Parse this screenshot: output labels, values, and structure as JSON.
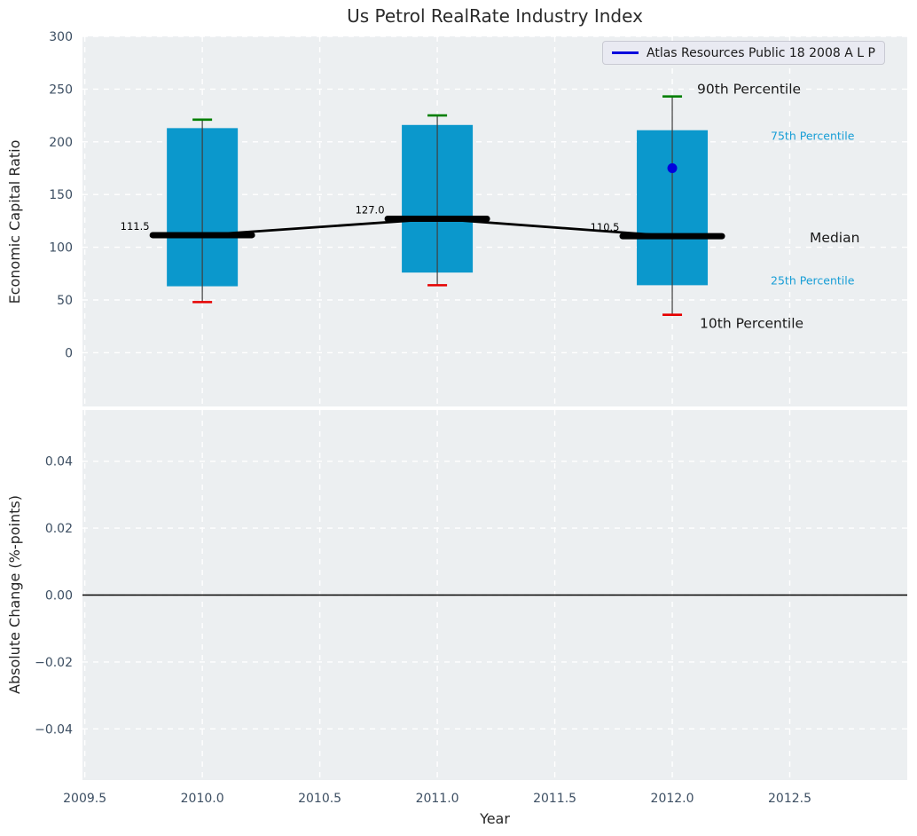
{
  "figure": {
    "title": "Us Petrol RealRate Industry Index",
    "background": "#ffffff",
    "axes_background": "#eceff1",
    "grid_color": "#ffffff"
  },
  "chart_data": [
    {
      "type": "boxplot",
      "title": "Us Petrol RealRate Industry Index",
      "ylabel": "Economic Capital Ratio",
      "legend": {
        "position": "upper right",
        "entries": [
          {
            "label": "Atlas Resources Public 18 2008 A L P",
            "color": "#0202dd"
          }
        ]
      },
      "xlim": [
        2009.49,
        2013.0
      ],
      "ylim": [
        -51,
        300
      ],
      "grid": true,
      "yticks": [
        {
          "v": 300,
          "label": "300"
        },
        {
          "v": 250,
          "label": "250"
        },
        {
          "v": 200,
          "label": "200"
        },
        {
          "v": 150,
          "label": "150"
        },
        {
          "v": 100,
          "label": "100"
        },
        {
          "v": 50,
          "label": "50"
        },
        {
          "v": 0,
          "label": "0"
        }
      ],
      "colors": {
        "box_fill": "#0b98cc",
        "whisker": "#3f3f3f",
        "cap_p90": "#007f00",
        "cap_p10": "#e60000",
        "median": "#000000",
        "trend_line": "#000000",
        "marker": "#0202dd",
        "annotation_dark": "#1a1a1a",
        "annotation_cyan": "#189ed6"
      },
      "boxes": [
        {
          "x": 2010,
          "p10": 48,
          "p25": 63,
          "median": 111.5,
          "p75": 213,
          "p90": 221,
          "median_label": "111.5"
        },
        {
          "x": 2011,
          "p10": 64,
          "p25": 76,
          "median": 127.0,
          "p75": 216,
          "p90": 225,
          "median_label": "127.0"
        },
        {
          "x": 2012,
          "p10": 36,
          "p25": 64,
          "median": 110.5,
          "p75": 211,
          "p90": 243,
          "median_label": "110.5",
          "marker": {
            "v": 175,
            "color": "#0202dd"
          }
        }
      ],
      "median_trend_line": true,
      "annotations": [
        {
          "text": "90th Percentile",
          "anchor": "p90",
          "style": "dark"
        },
        {
          "text": "75th Percentile",
          "anchor": "p75",
          "style": "cyan"
        },
        {
          "text": "Median",
          "anchor": "median",
          "style": "dark"
        },
        {
          "text": "25th Percentile",
          "anchor": "p25",
          "style": "cyan"
        },
        {
          "text": "10th Percentile",
          "anchor": "p10",
          "style": "dark"
        }
      ]
    },
    {
      "type": "line",
      "xlabel": "Year",
      "ylabel": "Absolute Change (%-points)",
      "xlim": [
        2009.49,
        2013.0
      ],
      "ylim": [
        -0.0553,
        0.0553
      ],
      "grid": true,
      "hline": {
        "y": 0.0,
        "color": "#000000"
      },
      "yticks": [
        {
          "v": 0.04,
          "label": "0.04"
        },
        {
          "v": 0.02,
          "label": "0.02"
        },
        {
          "v": 0.0,
          "label": "0.00"
        },
        {
          "v": -0.02,
          "label": "−0.02"
        },
        {
          "v": -0.04,
          "label": "−0.04"
        }
      ],
      "xticks": [
        {
          "v": 2009.5,
          "label": "2009.5"
        },
        {
          "v": 2010.0,
          "label": "2010.0"
        },
        {
          "v": 2010.5,
          "label": "2010.5"
        },
        {
          "v": 2011.0,
          "label": "2011.0"
        },
        {
          "v": 2011.5,
          "label": "2011.5"
        },
        {
          "v": 2012.0,
          "label": "2012.0"
        },
        {
          "v": 2012.5,
          "label": "2012.5"
        }
      ]
    }
  ]
}
